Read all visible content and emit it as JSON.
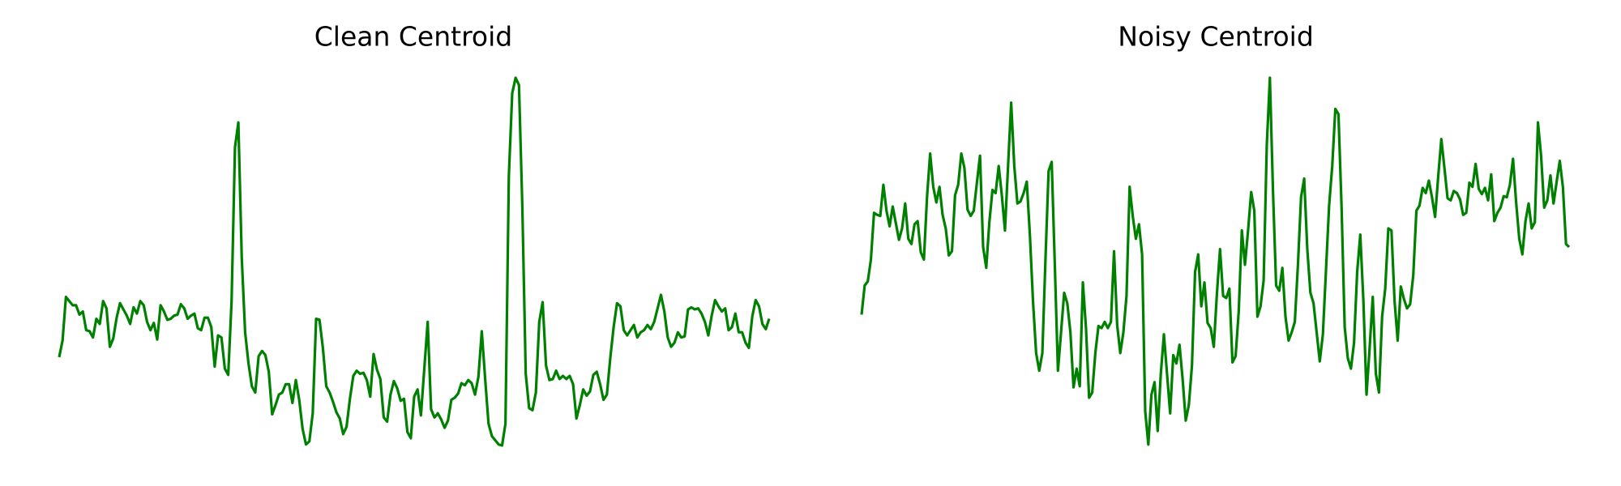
{
  "chart_data": [
    {
      "type": "line",
      "title": "Clean Centroid",
      "color": "#008000",
      "values": [
        106,
        122,
        164,
        160,
        156,
        156,
        147,
        150,
        132,
        131,
        125,
        143,
        138,
        160,
        153,
        116,
        124,
        144,
        158,
        152,
        146,
        138,
        154,
        148,
        160,
        156,
        140,
        132,
        139,
        123,
        156,
        150,
        142,
        143,
        146,
        147,
        157,
        153,
        143,
        146,
        148,
        134,
        132,
        144,
        144,
        135,
        97,
        127,
        125,
        95,
        89,
        160,
        308,
        332,
        202,
        130,
        100,
        78,
        72,
        107,
        112,
        108,
        92,
        51,
        60,
        70,
        72,
        80,
        80,
        62,
        84,
        65,
        37,
        22,
        25,
        52,
        143,
        142,
        115,
        78,
        72,
        63,
        53,
        47,
        32,
        39,
        66,
        88,
        93,
        90,
        91,
        84,
        68,
        109,
        94,
        85,
        48,
        44,
        70,
        83,
        76,
        64,
        66,
        34,
        28,
        68,
        75,
        50,
        95,
        140,
        56,
        48,
        52,
        46,
        38,
        45,
        65,
        67,
        71,
        81,
        79,
        84,
        81,
        70,
        87,
        131,
        85,
        42,
        30,
        26,
        22,
        21,
        42,
        280,
        360,
        375,
        368,
        250,
        90,
        57,
        55,
        72,
        140,
        159,
        98,
        84,
        85,
        93,
        85,
        88,
        85,
        88,
        80,
        47,
        60,
        75,
        69,
        73,
        89,
        92,
        80,
        65,
        70,
        105,
        135,
        158,
        155,
        132,
        127,
        132,
        137,
        125,
        130,
        132,
        137,
        133,
        140,
        153,
        166,
        150,
        125,
        116,
        120,
        130,
        125,
        126,
        152,
        154,
        152,
        153,
        148,
        140,
        127,
        146,
        161,
        155,
        150,
        153,
        132,
        135,
        148,
        130,
        130,
        120,
        115,
        145,
        161,
        155,
        138,
        133,
        143
      ]
    },
    {
      "type": "line",
      "title": "Noisy Centroid",
      "color": "#008000",
      "values": [
        147,
        175,
        179,
        200,
        245,
        243,
        242,
        272,
        247,
        232,
        251,
        235,
        219,
        230,
        254,
        220,
        215,
        234,
        237,
        207,
        200,
        260,
        302,
        270,
        255,
        270,
        243,
        230,
        204,
        208,
        262,
        272,
        302,
        288,
        248,
        242,
        247,
        274,
        300,
        212,
        192,
        236,
        267,
        264,
        290,
        262,
        228,
        290,
        351,
        290,
        254,
        256,
        264,
        275,
        224,
        160,
        110,
        93,
        110,
        200,
        285,
        294,
        195,
        93,
        130,
        168,
        158,
        130,
        77,
        95,
        78,
        178,
        134,
        67,
        72,
        110,
        136,
        134,
        140,
        134,
        140,
        208,
        137,
        110,
        130,
        165,
        270,
        242,
        220,
        234,
        205,
        54,
        22,
        70,
        82,
        35,
        90,
        128,
        90,
        52,
        108,
        100,
        118,
        85,
        45,
        60,
        98,
        188,
        205,
        155,
        178,
        139,
        134,
        116,
        167,
        210,
        165,
        163,
        172,
        101,
        107,
        150,
        228,
        195,
        228,
        265,
        247,
        145,
        155,
        180,
        310,
        375,
        265,
        175,
        170,
        192,
        145,
        122,
        130,
        140,
        195,
        260,
        278,
        210,
        168,
        158,
        130,
        102,
        128,
        190,
        252,
        290,
        345,
        340,
        250,
        135,
        105,
        95,
        120,
        188,
        224,
        160,
        70,
        115,
        164,
        90,
        72,
        145,
        172,
        230,
        228,
        160,
        122,
        174,
        162,
        153,
        157,
        185,
        247,
        252,
        269,
        264,
        276,
        260,
        241,
        280,
        316,
        288,
        259,
        257,
        266,
        264,
        258,
        243,
        245,
        274,
        270,
        292,
        268,
        263,
        269,
        257,
        282,
        237,
        245,
        250,
        261,
        260,
        272,
        297,
        255,
        220,
        205,
        237,
        254,
        230,
        236,
        332,
        300,
        250,
        257,
        281,
        254,
        275,
        295,
        270,
        215,
        212
      ]
    }
  ]
}
